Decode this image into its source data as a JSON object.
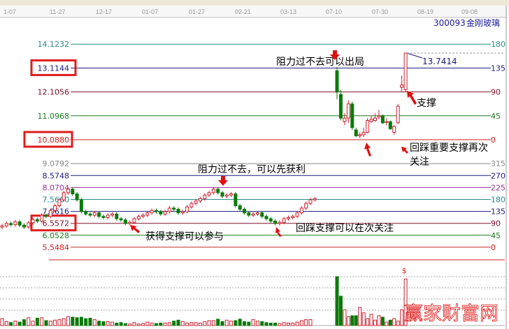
{
  "toolbar": {
    "icons": [
      "draw-tools-icon",
      "percent-icon",
      "indicator-icon",
      "pen-icon",
      "gann-icon"
    ]
  },
  "stock": {
    "code": "300093",
    "name": "金刚玻璃"
  },
  "date_axis": [
    "1-07",
    "11-27",
    "12-17",
    "01-07",
    "01-27",
    "02-21",
    "03-13",
    "07-10",
    "07-30",
    "08-19",
    "09-08"
  ],
  "colors": {
    "up": "#cc2030",
    "down": "#0a7a0a",
    "annotation": "#e01010",
    "box": "#dd1c1c"
  },
  "chart_data": {
    "type": "candlestick",
    "price_axis": "right levels in degrees, left levels in price",
    "upper_levels": [
      {
        "price": "14.1232",
        "angle": "180",
        "color": "#2a8a8a"
      },
      {
        "price": "13.1144",
        "angle": "135",
        "color": "#1a1a80",
        "boxed": true
      },
      {
        "price": "12.1056",
        "angle": "90",
        "color": "#80102a"
      },
      {
        "price": "11.0968",
        "angle": "45",
        "color": "#1a7a1a"
      },
      {
        "price": "10.0880",
        "angle": "0",
        "color": "#cc2020",
        "boxed": true
      }
    ],
    "lower_levels": [
      {
        "price": "9.0792",
        "angle": "315",
        "color": "#888888"
      },
      {
        "price": "8.5748",
        "angle": "270",
        "color": "#1a1a80"
      },
      {
        "price": "8.0704",
        "angle": "225",
        "color": "#993399"
      },
      {
        "price": "7.5660",
        "angle": "180",
        "color": "#2a8a8a"
      },
      {
        "price": "7.0616",
        "angle": "135",
        "color": "#1a1a80"
      },
      {
        "price": "6.5572",
        "angle": "90",
        "color": "#80102a",
        "boxed": true
      },
      {
        "price": "6.0528",
        "angle": "45",
        "color": "#1a7a1a"
      },
      {
        "price": "5.5484",
        "angle": "0",
        "color": "#cc2020"
      }
    ],
    "high_label": "13.7414",
    "closes_segment1": [
      6.45,
      6.55,
      6.5,
      6.62,
      6.48,
      6.4,
      6.58,
      6.72,
      6.65,
      6.9,
      6.85,
      7.1,
      7.3,
      7.55,
      7.85,
      8.0,
      7.8,
      7.55,
      7.05,
      6.95,
      6.9,
      7.0,
      6.85,
      6.8,
      6.9,
      6.95,
      6.75,
      6.7,
      6.55,
      6.6,
      6.75,
      6.85,
      6.9,
      7.0,
      7.1,
      7.05,
      6.95,
      7.05,
      7.2,
      7.15,
      7.0,
      7.05,
      7.25,
      7.4,
      7.5,
      7.6,
      7.75,
      7.85,
      8.0,
      7.85,
      7.7,
      7.75,
      7.8,
      7.3,
      7.15,
      7.0,
      6.9,
      6.95,
      7.0,
      6.85,
      6.75,
      6.65,
      6.55,
      6.6,
      6.75,
      6.8,
      6.85,
      7.0,
      7.2,
      7.4,
      7.55,
      7.6
    ],
    "ohlc_segment2": [
      [
        13.0,
        13.15,
        11.8,
        12.1
      ],
      [
        12.0,
        12.2,
        10.9,
        11.0
      ],
      [
        10.85,
        11.2,
        10.7,
        11.0
      ],
      [
        11.0,
        11.75,
        10.8,
        11.6
      ],
      [
        11.6,
        11.7,
        10.5,
        10.6
      ],
      [
        10.5,
        10.6,
        10.2,
        10.25
      ],
      [
        10.25,
        10.4,
        10.15,
        10.3
      ],
      [
        10.3,
        10.6,
        10.2,
        10.4
      ],
      [
        10.4,
        11.0,
        10.35,
        10.9
      ],
      [
        10.85,
        11.1,
        10.8,
        10.95
      ],
      [
        10.9,
        11.2,
        10.85,
        11.0
      ],
      [
        11.05,
        11.35,
        10.95,
        11.1
      ],
      [
        11.1,
        11.15,
        10.75,
        10.8
      ],
      [
        10.85,
        11.0,
        10.7,
        10.85
      ],
      [
        10.85,
        10.9,
        10.5,
        10.55
      ],
      [
        10.4,
        10.7,
        10.3,
        10.65
      ],
      [
        10.8,
        11.6,
        10.75,
        11.5
      ],
      [
        12.3,
        12.8,
        12.1,
        12.4
      ],
      [
        12.2,
        13.75,
        12.1,
        13.75
      ]
    ],
    "volume_segment1": [
      14,
      8,
      6,
      9,
      7,
      12,
      16,
      9,
      15,
      16,
      10,
      9,
      11,
      12,
      14,
      18,
      17,
      16,
      17,
      14,
      15,
      12,
      9,
      8,
      8,
      7,
      5,
      6,
      4,
      3,
      6,
      3,
      4,
      7,
      5,
      4,
      5,
      5,
      6,
      9,
      11,
      8,
      5,
      6,
      6,
      5,
      8,
      10,
      10,
      13,
      8,
      11,
      9,
      10,
      13,
      8,
      7,
      12,
      9,
      8,
      6,
      5,
      5,
      4,
      6,
      5,
      5,
      7,
      10,
      12,
      12,
      0
    ],
    "volume_segment2": [
      100,
      60,
      32,
      18,
      20,
      20,
      37,
      26,
      14,
      23,
      11,
      20,
      17,
      7,
      11,
      14,
      9,
      32,
      95
    ],
    "volume_marker": "$"
  },
  "annotations": {
    "a1": "阻力过不去可以出局",
    "a2": "支撑",
    "a3_line1": "回踩重要支撑再次",
    "a3_line2": "关注",
    "a4": "阻力过不去，可以先获利",
    "a5": "获得支撑可以参与",
    "a6": "回踩支撑可以在次关注"
  },
  "watermark": "赢家财富网"
}
